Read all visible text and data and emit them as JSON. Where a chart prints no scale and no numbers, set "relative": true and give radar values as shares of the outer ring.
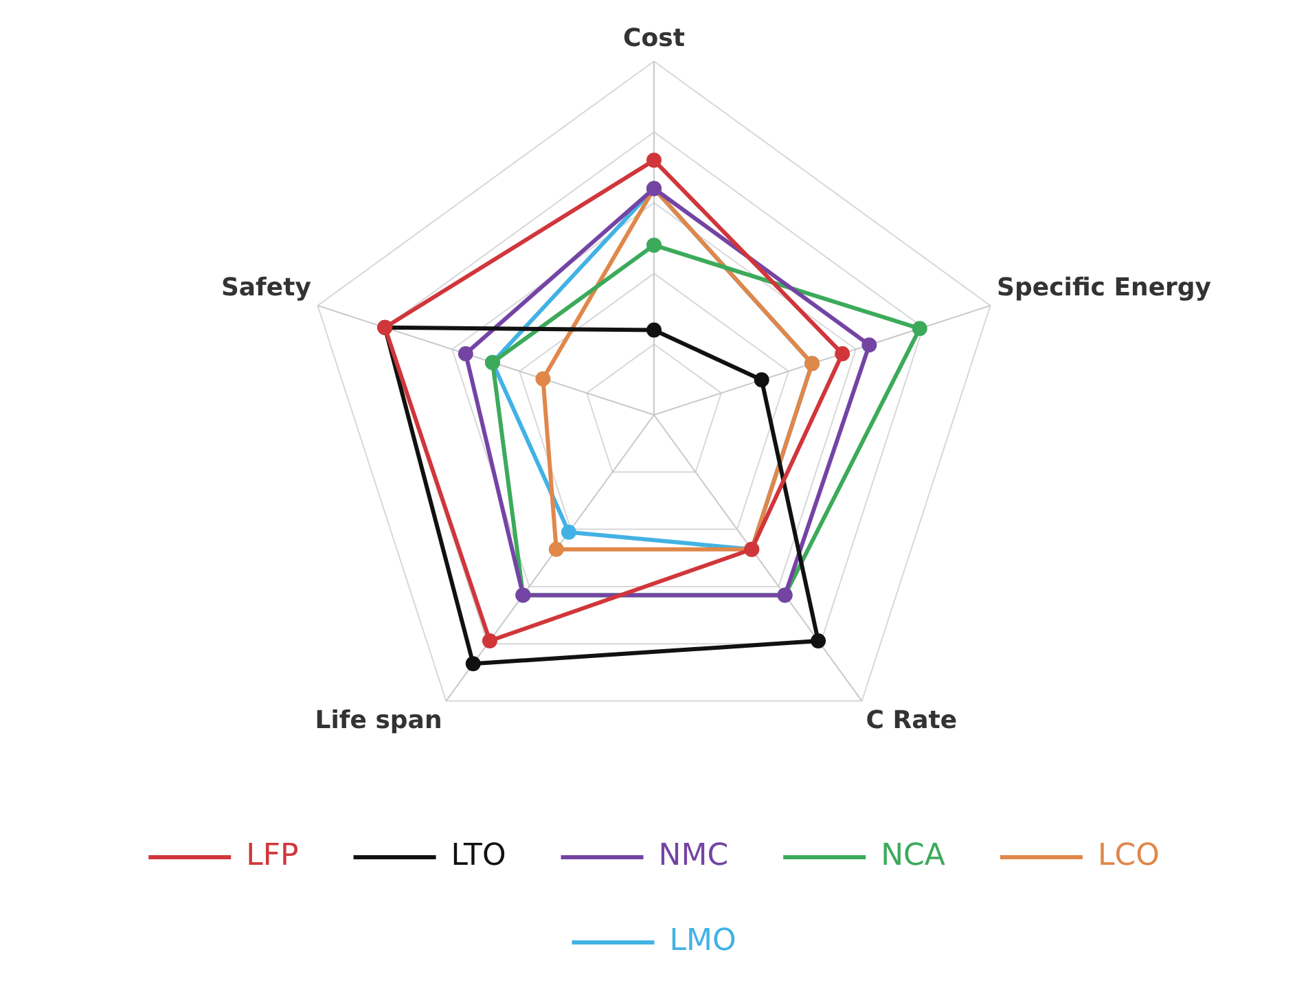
{
  "chart_data": {
    "type": "radar",
    "relative": true,
    "categories": [
      "Cost",
      "Specific Energy",
      "C Rate",
      "Life span",
      "Safety"
    ],
    "legend": "bottom",
    "marker": "circle",
    "grid": true,
    "series": [
      {
        "name": "LFP",
        "color": "#d0363a",
        "values": [
          0.72,
          0.56,
          0.47,
          0.79,
          0.8
        ]
      },
      {
        "name": "LTO",
        "color": "#111111",
        "values": [
          0.24,
          0.32,
          0.79,
          0.87,
          0.8
        ]
      },
      {
        "name": "NMC",
        "color": "#7444a4",
        "values": [
          0.64,
          0.64,
          0.63,
          0.63,
          0.56
        ]
      },
      {
        "name": "NCA",
        "color": "#3caa5a",
        "values": [
          0.48,
          0.79,
          0.63,
          0.63,
          0.48
        ]
      },
      {
        "name": "LCO",
        "color": "#e0874a",
        "values": [
          0.64,
          0.47,
          0.47,
          0.47,
          0.33
        ]
      },
      {
        "name": "LMO",
        "color": "#42b2e4",
        "values": [
          0.64,
          0.47,
          0.47,
          0.41,
          0.48
        ]
      }
    ]
  }
}
